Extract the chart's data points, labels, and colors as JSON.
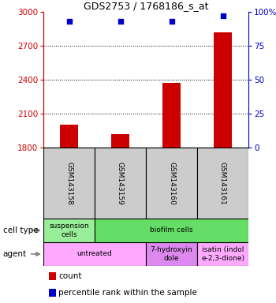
{
  "title": "GDS2753 / 1768186_s_at",
  "samples": [
    "GSM143158",
    "GSM143159",
    "GSM143160",
    "GSM143161"
  ],
  "counts": [
    2000,
    1920,
    2370,
    2820
  ],
  "percentile_ranks": [
    93,
    93,
    93,
    97
  ],
  "ylim_left": [
    1800,
    3000
  ],
  "ylim_right": [
    0,
    100
  ],
  "yticks_left": [
    1800,
    2100,
    2400,
    2700,
    3000
  ],
  "yticks_right": [
    0,
    25,
    50,
    75,
    100
  ],
  "bar_color": "#cc0000",
  "dot_color": "#0000cc",
  "cell_type_labels": [
    "suspension\ncells",
    "biofilm cells"
  ],
  "cell_type_colors": [
    "#99ee99",
    "#66dd66"
  ],
  "cell_type_spans": [
    1,
    3
  ],
  "agent_labels": [
    "untreated",
    "7-hydroxyin\ndole",
    "isatin (indol\ne-2,3-dione)"
  ],
  "agent_colors": [
    "#ffaaff",
    "#dd88ee",
    "#ffaaff"
  ],
  "agent_spans": [
    2,
    1,
    1
  ],
  "cell_type_label": "cell type",
  "agent_label": "agent",
  "legend_count": "count",
  "legend_pct": "percentile rank within the sample",
  "left_axis_color": "#cc0000",
  "right_axis_color": "#0000cc",
  "sample_box_color": "#cccccc"
}
